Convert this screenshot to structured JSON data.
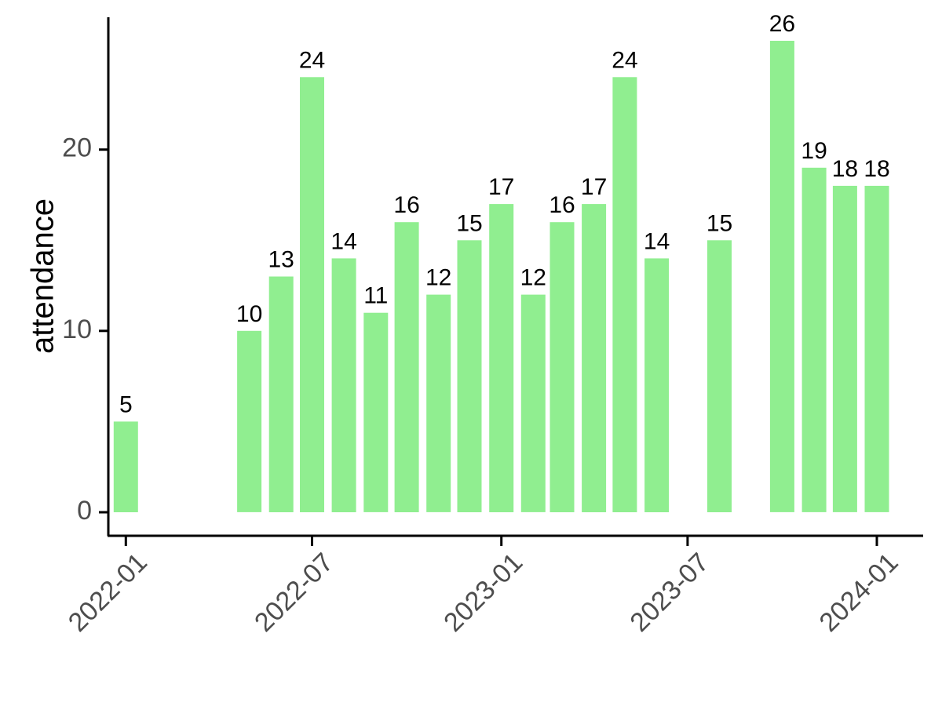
{
  "chart_data": {
    "type": "bar",
    "title": "",
    "xlabel": "",
    "ylabel": "attendance",
    "bar_color": "#90EE90",
    "axis_color": "#000000",
    "tick_label_color": "#4d4d4d",
    "grid": false,
    "legend": "none",
    "xlim": [
      "2021-12-15",
      "2024-02-15"
    ],
    "ylim": [
      -1.3,
      27.3
    ],
    "y_ticks": [
      0,
      10,
      20
    ],
    "x_ticks": [
      "2022-01",
      "2022-07",
      "2023-01",
      "2023-07",
      "2024-01"
    ],
    "x_tick_dates": [
      "2022-01-01",
      "2022-07-01",
      "2023-01-01",
      "2023-07-01",
      "2024-01-01"
    ],
    "bars": [
      {
        "date": "2022-01-01",
        "value": 5
      },
      {
        "date": "2022-05-01",
        "value": 10
      },
      {
        "date": "2022-06-01",
        "value": 13
      },
      {
        "date": "2022-07-01",
        "value": 24
      },
      {
        "date": "2022-08-01",
        "value": 14
      },
      {
        "date": "2022-09-01",
        "value": 11
      },
      {
        "date": "2022-10-01",
        "value": 16
      },
      {
        "date": "2022-11-01",
        "value": 12
      },
      {
        "date": "2022-12-01",
        "value": 15
      },
      {
        "date": "2023-01-01",
        "value": 17
      },
      {
        "date": "2023-02-01",
        "value": 12
      },
      {
        "date": "2023-03-01",
        "value": 16
      },
      {
        "date": "2023-04-01",
        "value": 17
      },
      {
        "date": "2023-05-01",
        "value": 24
      },
      {
        "date": "2023-06-01",
        "value": 14
      },
      {
        "date": "2023-08-01",
        "value": 15
      },
      {
        "date": "2023-10-01",
        "value": 26
      },
      {
        "date": "2023-11-01",
        "value": 19
      },
      {
        "date": "2023-12-01",
        "value": 18
      },
      {
        "date": "2024-01-01",
        "value": 18
      }
    ]
  }
}
